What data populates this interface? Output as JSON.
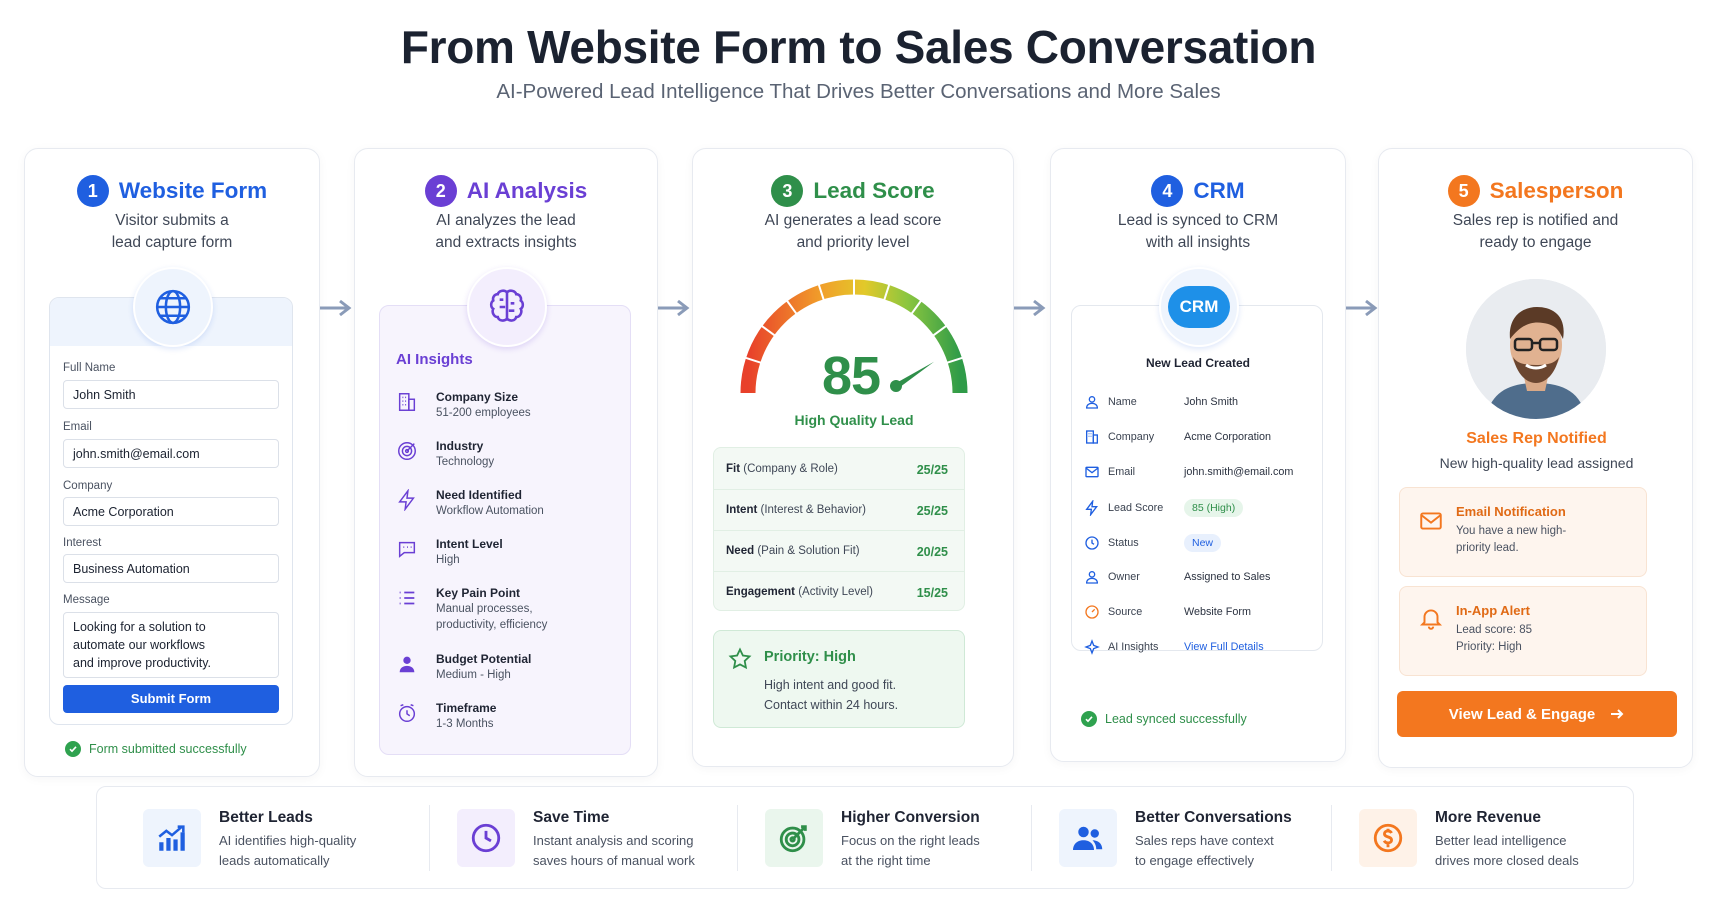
{
  "header": {
    "title": "From Website Form to Sales Conversation",
    "subtitle": "AI-Powered Lead Intelligence That Drives Better Conversations and More Sales"
  },
  "colors": {
    "blue": "#1f5fe0",
    "purple": "#6a3fd4",
    "green": "#2f8f4a",
    "orange": "#f3771f"
  },
  "steps": {
    "form": {
      "num": "1",
      "title": "Website Form",
      "desc": "Visitor submits a\nlead capture form",
      "fields": [
        {
          "label": "Full Name",
          "value": "John Smith"
        },
        {
          "label": "Email",
          "value": "john.smith@email.com"
        },
        {
          "label": "Company",
          "value": "Acme Corporation"
        },
        {
          "label": "Interest",
          "value": "Business Automation"
        },
        {
          "label": "Message",
          "value": "Looking for a solution to\nautomate our workflows\nand improve productivity."
        }
      ],
      "submit": "Submit Form",
      "success": "Form submitted successfully"
    },
    "ai": {
      "num": "2",
      "title": "AI Analysis",
      "desc": "AI analyzes the lead\nand extracts insights",
      "panel_title": "AI Insights",
      "insights": [
        {
          "title": "Company Size",
          "value": "51-200 employees",
          "icon": "building-icon"
        },
        {
          "title": "Industry",
          "value": "Technology",
          "icon": "target-icon"
        },
        {
          "title": "Need Identified",
          "value": "Workflow Automation",
          "icon": "lightning-icon"
        },
        {
          "title": "Intent Level",
          "value": "High",
          "icon": "chat-icon"
        },
        {
          "title": "Key Pain Point",
          "value": "Manual processes,\nproductivity, efficiency",
          "icon": "list-icon"
        },
        {
          "title": "Budget Potential",
          "value": "Medium - High",
          "icon": "person-icon"
        },
        {
          "title": "Timeframe",
          "value": "1-3 Months",
          "icon": "clock-icon"
        }
      ]
    },
    "score": {
      "num": "3",
      "title": "Lead Score",
      "desc": "AI generates a lead score\nand priority level",
      "score": "85",
      "score_value": 85,
      "quality": "High Quality Lead",
      "rows": [
        {
          "name": "Fit",
          "detail": "(Company & Role)",
          "value": "25/25"
        },
        {
          "name": "Intent",
          "detail": "(Interest & Behavior)",
          "value": "25/25"
        },
        {
          "name": "Need",
          "detail": "(Pain & Solution Fit)",
          "value": "20/25"
        },
        {
          "name": "Engagement",
          "detail": "(Activity Level)",
          "value": "15/25"
        }
      ],
      "priority_title": "Priority: High",
      "priority_text": "High intent and good fit.\nContact within 24 hours."
    },
    "crm": {
      "num": "4",
      "title": "CRM",
      "desc": "Lead is synced to CRM\nwith all insights",
      "logo": "CRM",
      "panel_title": "New Lead Created",
      "rows": [
        {
          "key": "Name",
          "value": "John Smith",
          "icon": "user-icon"
        },
        {
          "key": "Company",
          "value": "Acme Corporation",
          "icon": "building-icon"
        },
        {
          "key": "Email",
          "value": "john.smith@email.com",
          "icon": "mail-icon"
        },
        {
          "key": "Lead Score",
          "value": "85 (High)",
          "icon": "lightning-icon"
        },
        {
          "key": "Status",
          "value": "New",
          "icon": "status-icon"
        },
        {
          "key": "Owner",
          "value": "Assigned to Sales",
          "icon": "user-icon"
        },
        {
          "key": "Source",
          "value": "Website Form",
          "icon": "source-icon"
        },
        {
          "key": "AI Insights",
          "value": "View Full Details",
          "icon": "sparkle-icon"
        }
      ],
      "success": "Lead synced successfully"
    },
    "sales": {
      "num": "5",
      "title": "Salesperson",
      "desc": "Sales rep is notified and\nready to engage",
      "notified": "Sales Rep Notified",
      "assigned": "New high-quality lead assigned",
      "email_title": "Email Notification",
      "email_text": "You have a new high-\npriority lead.",
      "alert_title": "In-App Alert",
      "alert_text": "Lead score: 85\nPriority: High",
      "cta": "View Lead & Engage"
    }
  },
  "benefits": [
    {
      "title": "Better Leads",
      "text": "AI identifies high-quality\nleads automatically",
      "icon": "chart-up-icon"
    },
    {
      "title": "Save Time",
      "text": "Instant analysis and scoring\nsaves hours of manual work",
      "icon": "clock-icon"
    },
    {
      "title": "Higher Conversion",
      "text": "Focus on the right leads\nat the right time",
      "icon": "target-icon"
    },
    {
      "title": "Better Conversations",
      "text": "Sales reps have context\nto engage effectively",
      "icon": "people-icon"
    },
    {
      "title": "More Revenue",
      "text": "Better lead intelligence\ndrives more closed deals",
      "icon": "dollar-icon"
    }
  ]
}
